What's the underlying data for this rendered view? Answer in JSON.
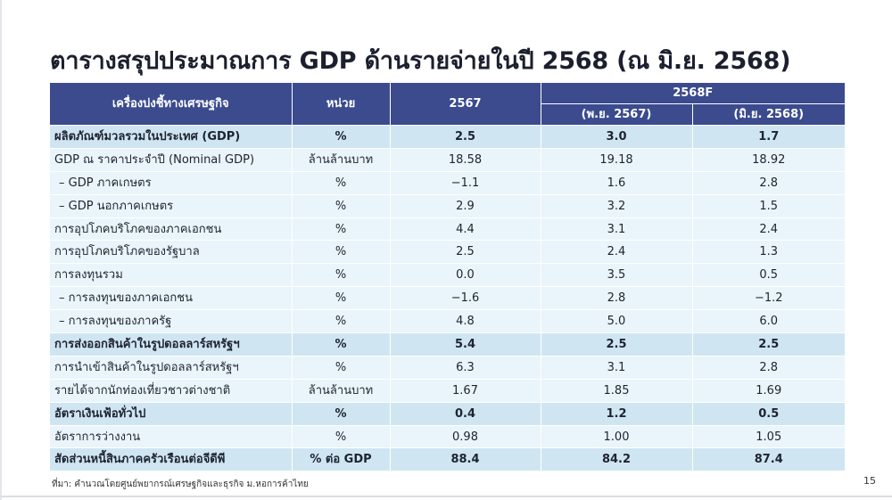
{
  "title": "ตารางสรุปประมาณการ GDP ด้านรายจ่ายในปี 2568 (ณ มิ.ย. 2568)",
  "table": {
    "headers": {
      "indicator": "เครื่องบ่งชี้ทางเศรษฐกิจ",
      "unit": "หน่วย",
      "year2567": "2567",
      "forecast": "2568F",
      "forecast_may": "(พ.ย. 2567)",
      "forecast_jun": "(มิ.ย. 2568)"
    },
    "rows": [
      {
        "label": "ผลิตภัณฑ์มวลรวมในประเทศ (GDP)",
        "unit": "%",
        "y2567": "2.5",
        "f_may": "3.0",
        "f_jun": "1.7",
        "bold": true
      },
      {
        "label": "GDP ณ ราคาประจำปี (Nominal GDP)",
        "unit": "ล้านล้านบาท",
        "y2567": "18.58",
        "f_may": "19.18",
        "f_jun": "18.92",
        "bold": false
      },
      {
        "label": "– GDP ภาคเกษตร",
        "unit": "%",
        "y2567": "−1.1",
        "f_may": "1.6",
        "f_jun": "2.8",
        "bold": false,
        "indent": true
      },
      {
        "label": "– GDP นอกภาคเกษตร",
        "unit": "%",
        "y2567": "2.9",
        "f_may": "3.2",
        "f_jun": "1.5",
        "bold": false,
        "indent": true
      },
      {
        "label": "การอุปโภคบริโภคของภาคเอกชน",
        "unit": "%",
        "y2567": "4.4",
        "f_may": "3.1",
        "f_jun": "2.4",
        "bold": false
      },
      {
        "label": "การอุปโภคบริโภคของรัฐบาล",
        "unit": "%",
        "y2567": "2.5",
        "f_may": "2.4",
        "f_jun": "1.3",
        "bold": false
      },
      {
        "label": "การลงทุนรวม",
        "unit": "%",
        "y2567": "0.0",
        "f_may": "3.5",
        "f_jun": "0.5",
        "bold": false
      },
      {
        "label": "– การลงทุนของภาคเอกชน",
        "unit": "%",
        "y2567": "−1.6",
        "f_may": "2.8",
        "f_jun": "−1.2",
        "bold": false,
        "indent": true
      },
      {
        "label": "– การลงทุนของภาครัฐ",
        "unit": "%",
        "y2567": "4.8",
        "f_may": "5.0",
        "f_jun": "6.0",
        "bold": false,
        "indent": true
      },
      {
        "label": "การส่งออกสินค้าในรูปดอลลาร์สหรัฐฯ",
        "unit": "%",
        "y2567": "5.4",
        "f_may": "2.5",
        "f_jun": "2.5",
        "bold": true
      },
      {
        "label": "การนำเข้าสินค้าในรูปดอลลาร์สหรัฐฯ",
        "unit": "%",
        "y2567": "6.3",
        "f_may": "3.1",
        "f_jun": "2.8",
        "bold": false
      },
      {
        "label": "รายได้จากนักท่องเที่ยวชาวต่างชาติ",
        "unit": "ล้านล้านบาท",
        "y2567": "1.67",
        "f_may": "1.85",
        "f_jun": "1.69",
        "bold": false
      },
      {
        "label": "อัตราเงินเฟ้อทั่วไป",
        "unit": "%",
        "y2567": "0.4",
        "f_may": "1.2",
        "f_jun": "0.5",
        "bold": true
      },
      {
        "label": "อัตราการว่างงาน",
        "unit": "%",
        "y2567": "0.98",
        "f_may": "1.00",
        "f_jun": "1.05",
        "bold": false
      },
      {
        "label": "สัดส่วนหนี้สินภาคครัวเรือนต่อจีดีพี",
        "unit": "% ต่อ GDP",
        "y2567": "88.4",
        "f_may": "84.2",
        "f_jun": "87.4",
        "bold": true
      }
    ]
  },
  "source": "ที่มา: คำนวณโดยศูนย์พยากรณ์เศรษฐกิจและธุรกิจ ม.หอการค้าไทย",
  "page_number": "15",
  "colors": {
    "header_bg": "#3b4b8e",
    "bold_row_bg": "#cfe6f2",
    "normal_row_bg": "#e9f5fa"
  }
}
